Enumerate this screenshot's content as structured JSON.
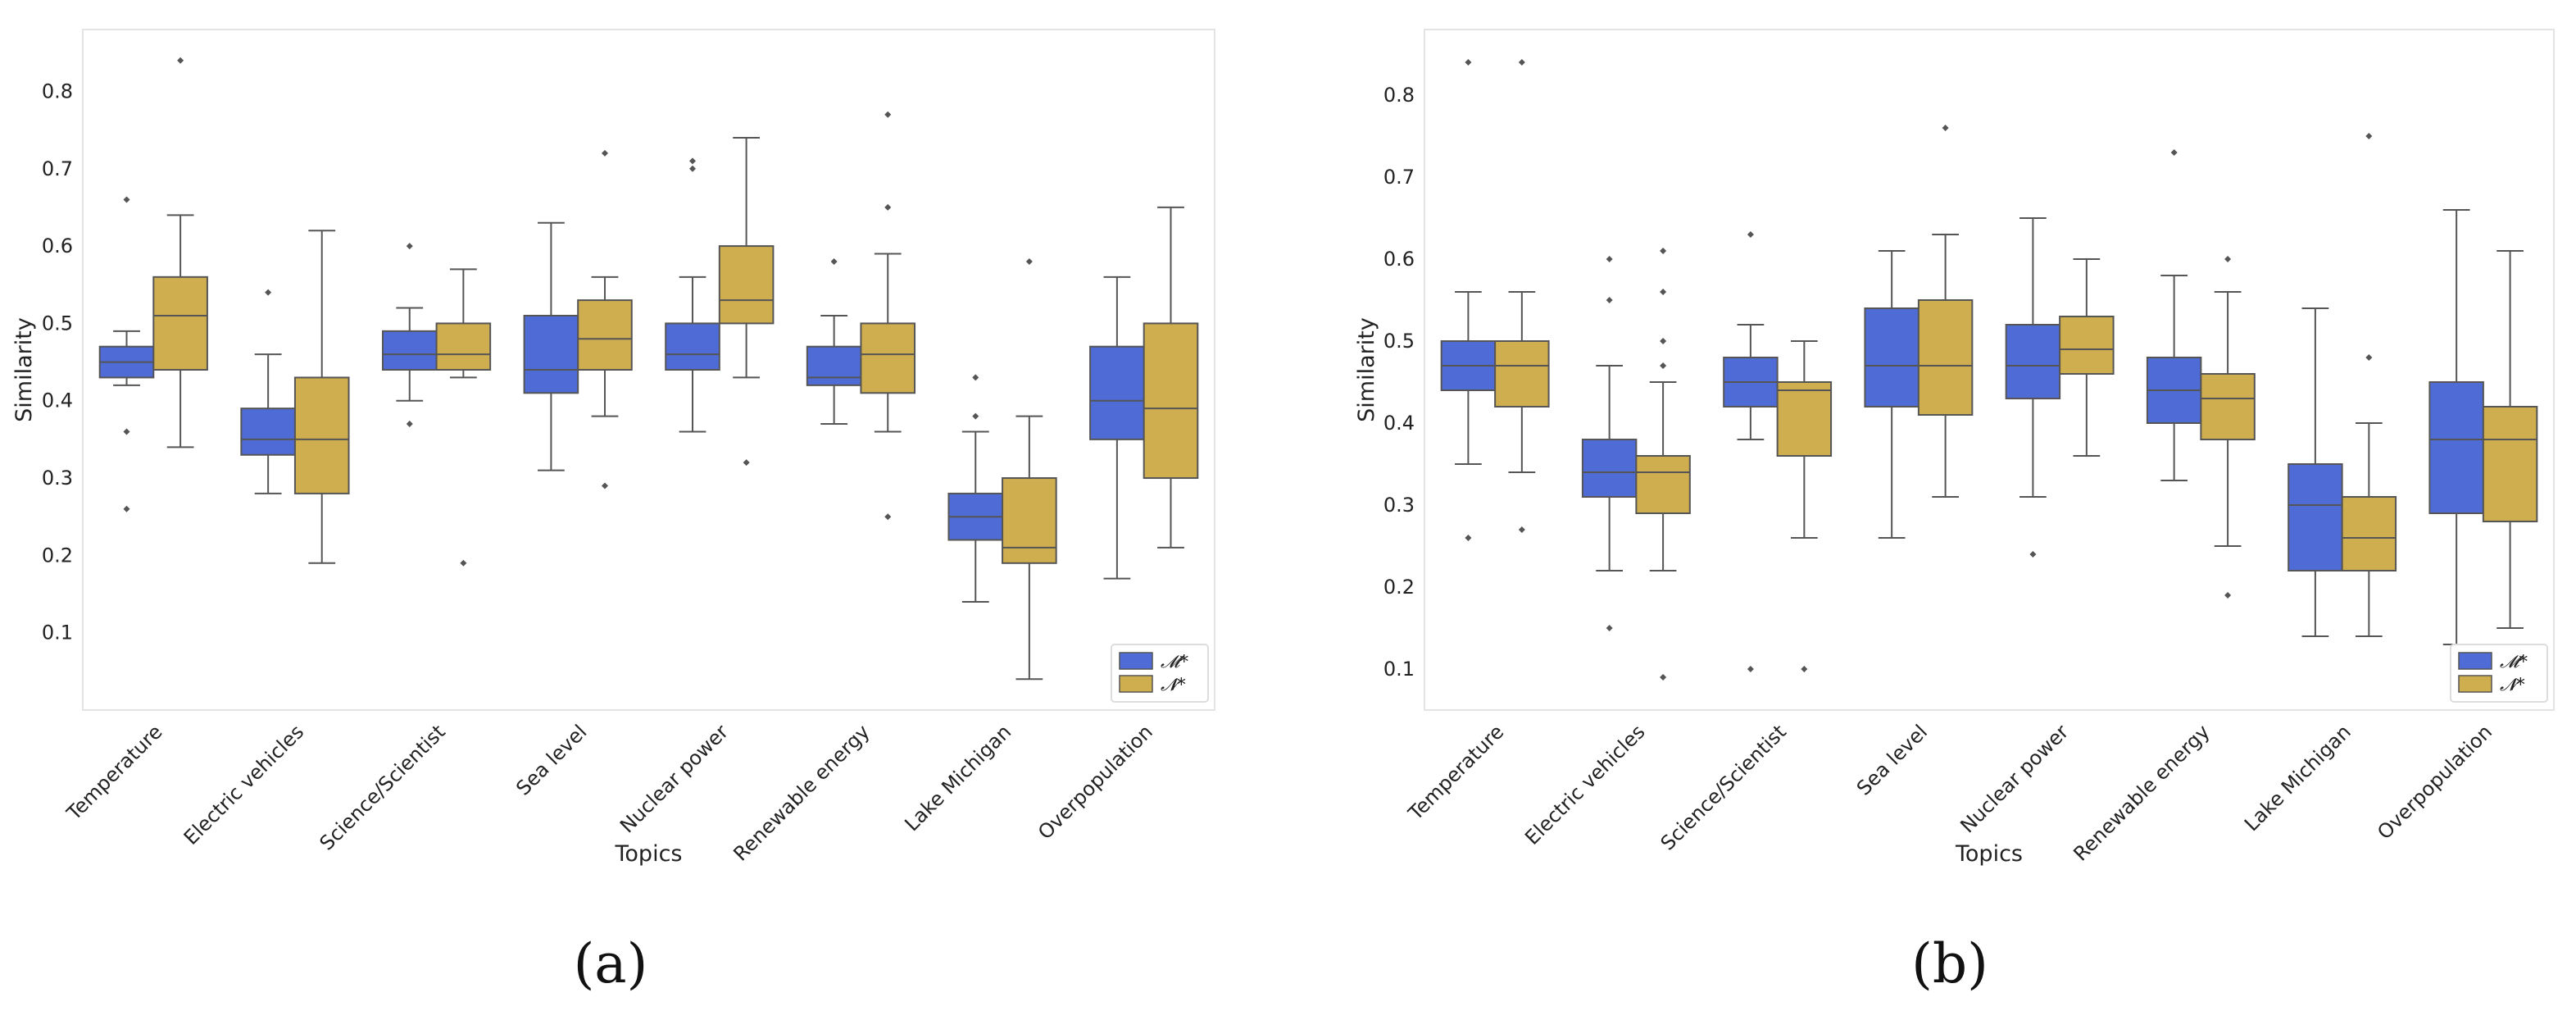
{
  "chart_data": [
    {
      "type": "box",
      "panel": "(a)",
      "xlabel": "Topics",
      "ylabel": "Similarity",
      "ylim": [
        0.0,
        0.88
      ],
      "yticks": [
        "0.1",
        "0.2",
        "0.3",
        "0.4",
        "0.5",
        "0.6",
        "0.7",
        "0.8"
      ],
      "grid": false,
      "legend_position": "bottom-right",
      "categories": [
        "Temperature",
        "Electric vehicles",
        "Science/Scientist",
        "Sea level",
        "Nuclear power",
        "Renewable energy",
        "Lake Michigan",
        "Overpopulation"
      ],
      "series": [
        {
          "name": "𝓜*",
          "color": "#4f6bd6",
          "boxes": [
            {
              "whislo": 0.42,
              "q1": 0.43,
              "med": 0.45,
              "q3": 0.47,
              "whishi": 0.49,
              "fliers": [
                0.66,
                0.36,
                0.26
              ]
            },
            {
              "whislo": 0.28,
              "q1": 0.33,
              "med": 0.35,
              "q3": 0.39,
              "whishi": 0.46,
              "fliers": [
                0.54
              ]
            },
            {
              "whislo": 0.4,
              "q1": 0.44,
              "med": 0.46,
              "q3": 0.49,
              "whishi": 0.52,
              "fliers": [
                0.6,
                0.37
              ]
            },
            {
              "whislo": 0.31,
              "q1": 0.41,
              "med": 0.44,
              "q3": 0.51,
              "whishi": 0.63,
              "fliers": []
            },
            {
              "whislo": 0.36,
              "q1": 0.44,
              "med": 0.46,
              "q3": 0.5,
              "whishi": 0.56,
              "fliers": [
                0.71,
                0.7
              ]
            },
            {
              "whislo": 0.37,
              "q1": 0.42,
              "med": 0.43,
              "q3": 0.47,
              "whishi": 0.51,
              "fliers": [
                0.58
              ]
            },
            {
              "whislo": 0.14,
              "q1": 0.22,
              "med": 0.25,
              "q3": 0.28,
              "whishi": 0.36,
              "fliers": [
                0.43,
                0.38
              ]
            },
            {
              "whislo": 0.17,
              "q1": 0.35,
              "med": 0.4,
              "q3": 0.47,
              "whishi": 0.56,
              "fliers": []
            }
          ]
        },
        {
          "name": "𝓝*",
          "color": "#cfae4f",
          "boxes": [
            {
              "whislo": 0.34,
              "q1": 0.44,
              "med": 0.51,
              "q3": 0.56,
              "whishi": 0.64,
              "fliers": [
                0.84
              ]
            },
            {
              "whislo": 0.19,
              "q1": 0.28,
              "med": 0.35,
              "q3": 0.43,
              "whishi": 0.62,
              "fliers": []
            },
            {
              "whislo": 0.43,
              "q1": 0.44,
              "med": 0.46,
              "q3": 0.5,
              "whishi": 0.57,
              "fliers": [
                0.19
              ]
            },
            {
              "whislo": 0.38,
              "q1": 0.44,
              "med": 0.48,
              "q3": 0.53,
              "whishi": 0.56,
              "fliers": [
                0.72,
                0.29
              ]
            },
            {
              "whislo": 0.43,
              "q1": 0.5,
              "med": 0.53,
              "q3": 0.6,
              "whishi": 0.74,
              "fliers": [
                0.32
              ]
            },
            {
              "whislo": 0.36,
              "q1": 0.41,
              "med": 0.46,
              "q3": 0.5,
              "whishi": 0.59,
              "fliers": [
                0.77,
                0.65,
                0.25
              ]
            },
            {
              "whislo": 0.04,
              "q1": 0.19,
              "med": 0.21,
              "q3": 0.3,
              "whishi": 0.38,
              "fliers": [
                0.58
              ]
            },
            {
              "whislo": 0.21,
              "q1": 0.3,
              "med": 0.39,
              "q3": 0.5,
              "whishi": 0.65,
              "fliers": []
            }
          ]
        }
      ]
    },
    {
      "type": "box",
      "panel": "(b)",
      "xlabel": "Topics",
      "ylabel": "Similarity",
      "ylim": [
        0.05,
        0.88
      ],
      "yticks": [
        "0.1",
        "0.2",
        "0.3",
        "0.4",
        "0.5",
        "0.6",
        "0.7",
        "0.8"
      ],
      "grid": false,
      "legend_position": "bottom-right",
      "categories": [
        "Temperature",
        "Electric vehicles",
        "Science/Scientist",
        "Sea level",
        "Nuclear power",
        "Renewable energy",
        "Lake Michigan",
        "Overpopulation"
      ],
      "series": [
        {
          "name": "𝓜*",
          "color": "#4f6bd6",
          "boxes": [
            {
              "whislo": 0.35,
              "q1": 0.44,
              "med": 0.47,
              "q3": 0.5,
              "whishi": 0.56,
              "fliers": [
                0.84,
                0.26
              ]
            },
            {
              "whislo": 0.22,
              "q1": 0.31,
              "med": 0.34,
              "q3": 0.38,
              "whishi": 0.47,
              "fliers": [
                0.6,
                0.55,
                0.15
              ]
            },
            {
              "whislo": 0.38,
              "q1": 0.42,
              "med": 0.45,
              "q3": 0.48,
              "whishi": 0.52,
              "fliers": [
                0.63,
                0.1
              ]
            },
            {
              "whislo": 0.26,
              "q1": 0.42,
              "med": 0.47,
              "q3": 0.54,
              "whishi": 0.61,
              "fliers": []
            },
            {
              "whislo": 0.31,
              "q1": 0.43,
              "med": 0.47,
              "q3": 0.52,
              "whishi": 0.65,
              "fliers": [
                0.24
              ]
            },
            {
              "whislo": 0.33,
              "q1": 0.4,
              "med": 0.44,
              "q3": 0.48,
              "whishi": 0.58,
              "fliers": [
                0.73
              ]
            },
            {
              "whislo": 0.14,
              "q1": 0.22,
              "med": 0.3,
              "q3": 0.35,
              "whishi": 0.54,
              "fliers": []
            },
            {
              "whislo": 0.13,
              "q1": 0.29,
              "med": 0.38,
              "q3": 0.45,
              "whishi": 0.66,
              "fliers": []
            }
          ]
        },
        {
          "name": "𝓝*",
          "color": "#cfae4f",
          "boxes": [
            {
              "whislo": 0.34,
              "q1": 0.42,
              "med": 0.47,
              "q3": 0.5,
              "whishi": 0.56,
              "fliers": [
                0.84,
                0.27
              ]
            },
            {
              "whislo": 0.22,
              "q1": 0.29,
              "med": 0.34,
              "q3": 0.36,
              "whishi": 0.45,
              "fliers": [
                0.61,
                0.56,
                0.5,
                0.47,
                0.09
              ]
            },
            {
              "whislo": 0.26,
              "q1": 0.36,
              "med": 0.44,
              "q3": 0.45,
              "whishi": 0.5,
              "fliers": [
                0.1
              ]
            },
            {
              "whislo": 0.31,
              "q1": 0.41,
              "med": 0.47,
              "q3": 0.55,
              "whishi": 0.63,
              "fliers": [
                0.76
              ]
            },
            {
              "whislo": 0.36,
              "q1": 0.46,
              "med": 0.49,
              "q3": 0.53,
              "whishi": 0.6,
              "fliers": []
            },
            {
              "whislo": 0.25,
              "q1": 0.38,
              "med": 0.43,
              "q3": 0.46,
              "whishi": 0.56,
              "fliers": [
                0.6,
                0.19
              ]
            },
            {
              "whislo": 0.14,
              "q1": 0.22,
              "med": 0.26,
              "q3": 0.31,
              "whishi": 0.4,
              "fliers": [
                0.75,
                0.48
              ]
            },
            {
              "whislo": 0.15,
              "q1": 0.28,
              "med": 0.38,
              "q3": 0.42,
              "whishi": 0.61,
              "fliers": []
            }
          ]
        }
      ]
    }
  ]
}
